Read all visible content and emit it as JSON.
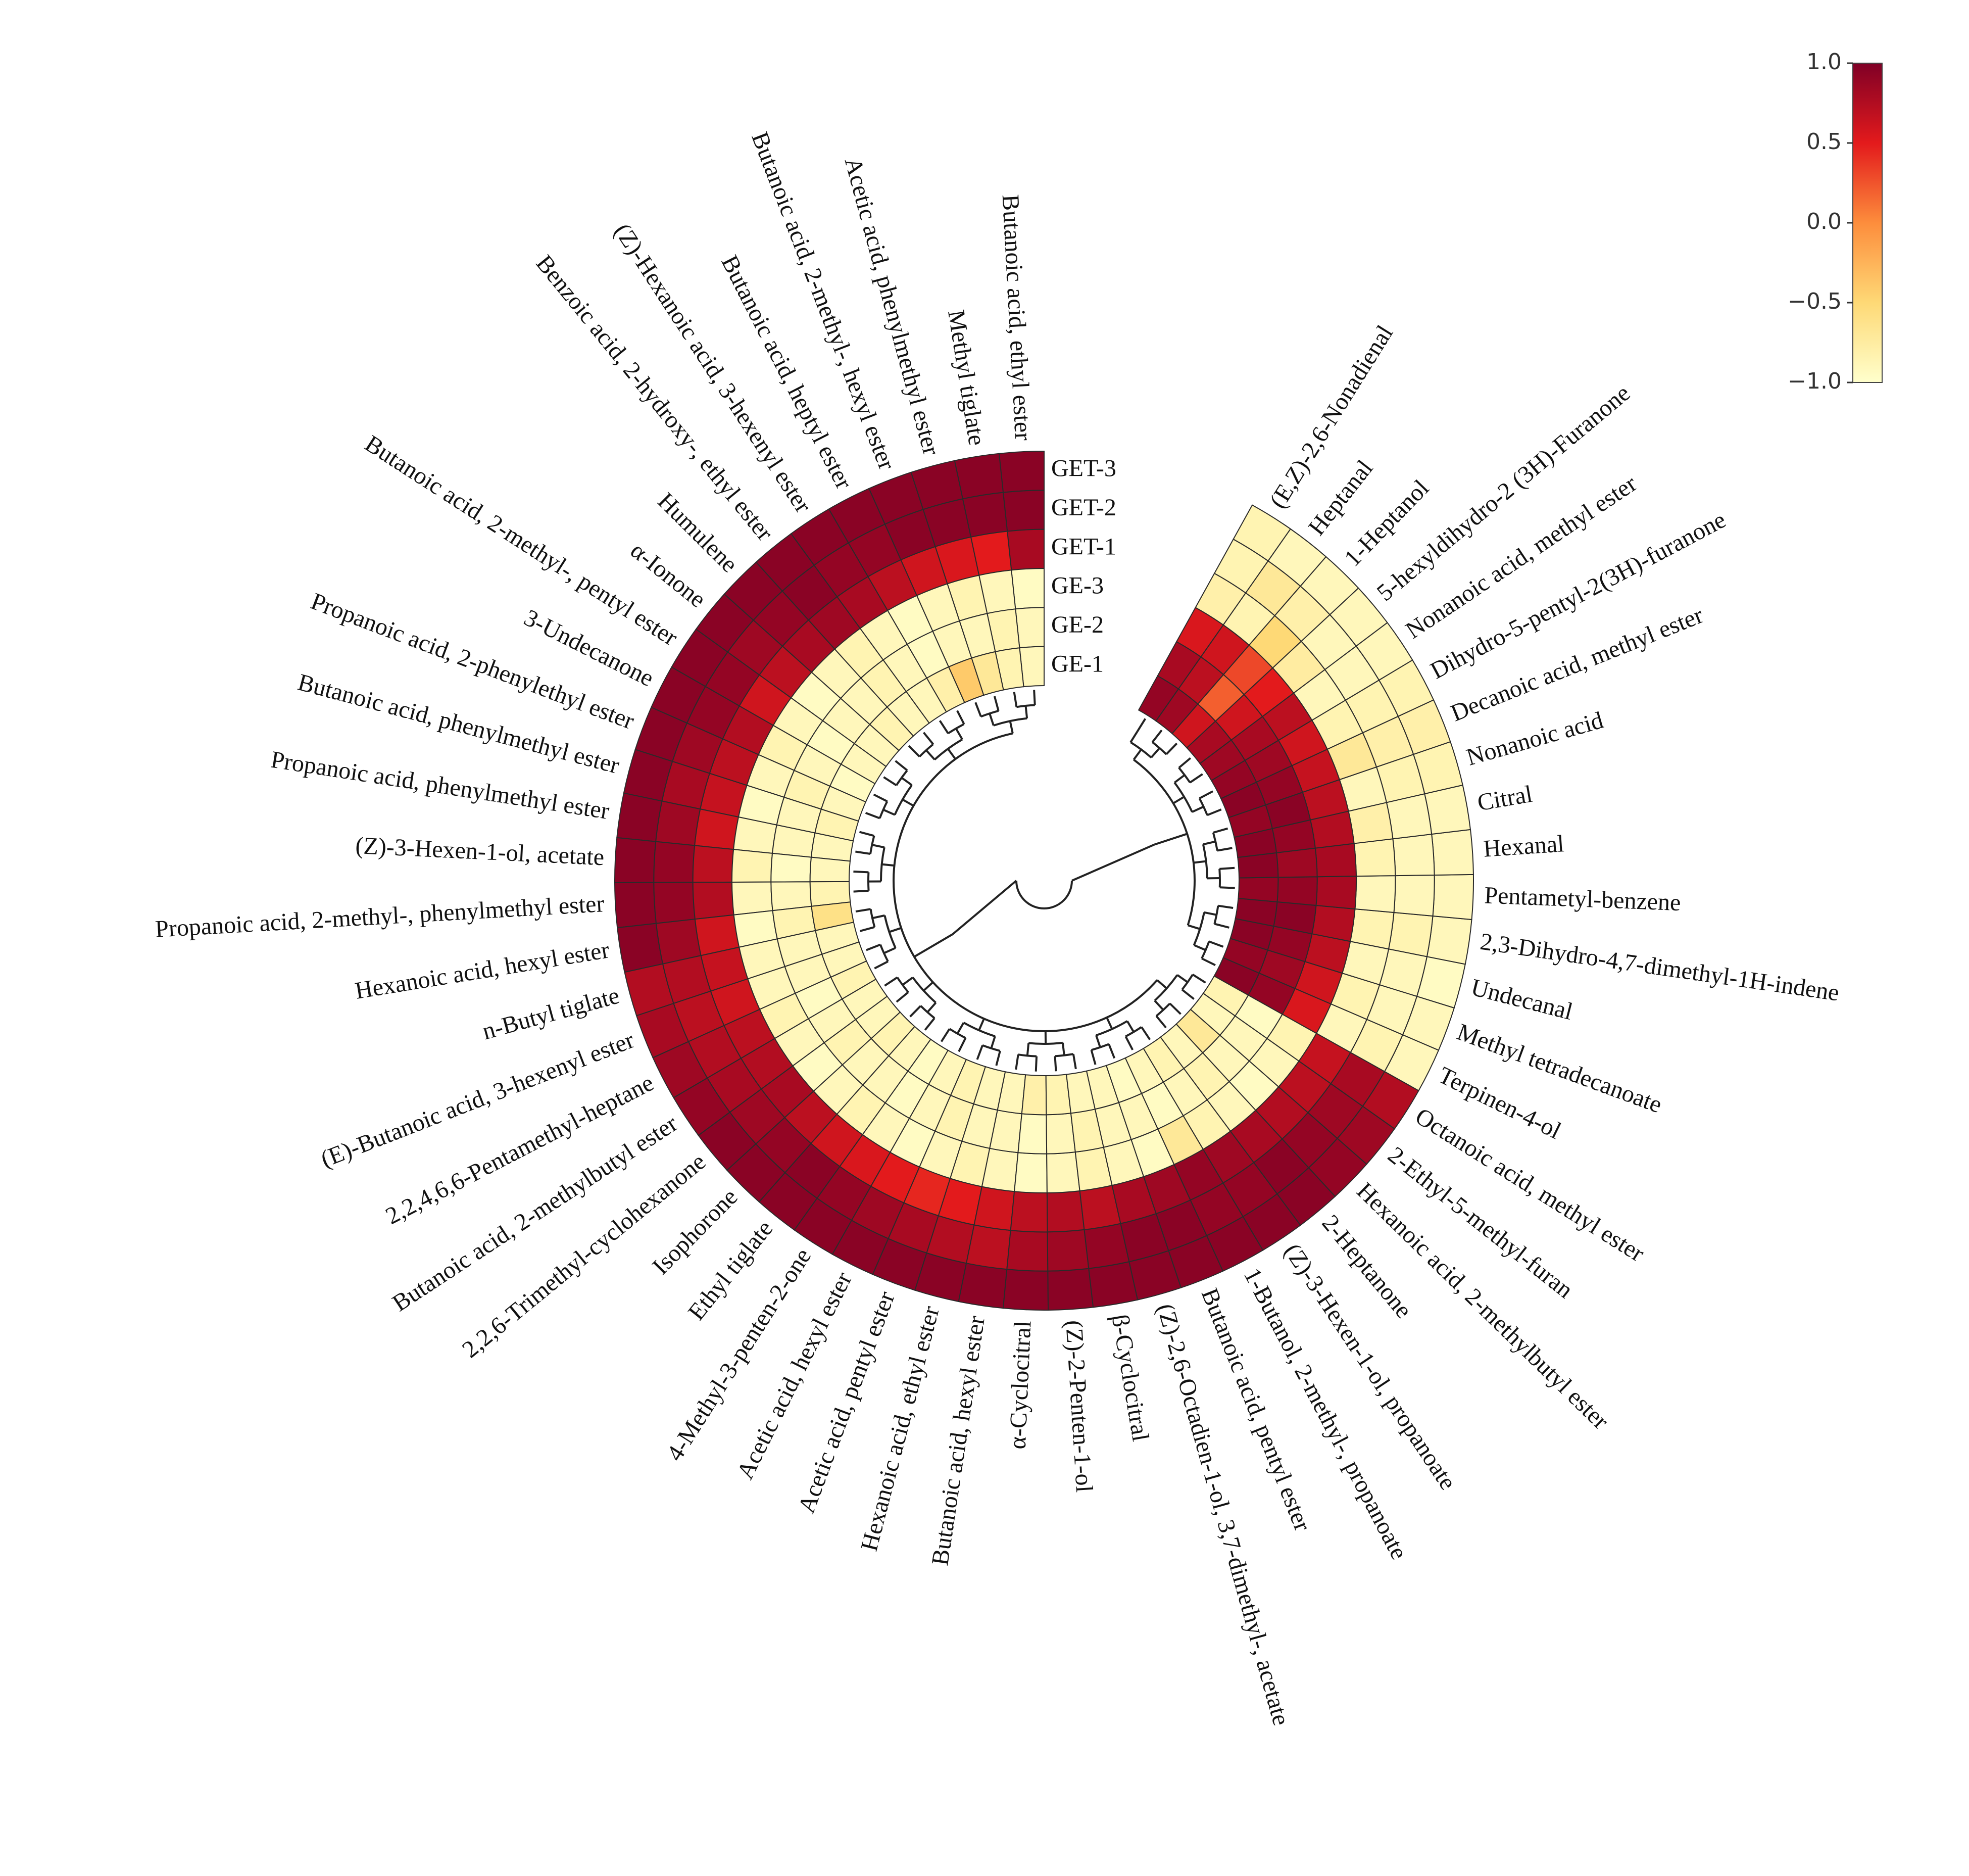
{
  "chart_data": {
    "type": "circular-heatmap",
    "categories": [
      "Butanoic acid, ethyl ester",
      "Methyl tiglate",
      "Acetic acid, phenylmethyl ester",
      "Butanoic acid, 2-methyl-, hexyl ester",
      "Butanoic acid, heptyl ester",
      "(Z)-Hexanoic acid, 3-hexenyl ester",
      "Benzoic acid, 2-hydroxy-, ethyl ester",
      "Humulene",
      "α-Ionone",
      "Butanoic acid, 2-methyl-, pentyl ester",
      "3-Undecanone",
      "Propanoic acid, 2-phenylethyl ester",
      "Butanoic acid, phenylmethyl ester",
      "Propanoic acid, phenylmethyl ester",
      "(Z)-3-Hexen-1-ol, acetate",
      "Propanoic acid, 2-methyl-, phenylmethyl ester",
      "Hexanoic acid, hexyl ester",
      "n-Butyl tiglate",
      "(E)-Butanoic acid, 3-hexenyl ester",
      "2,2,4,6,6-Pentamethyl-heptane",
      "Butanoic acid, 2-methylbutyl ester",
      "2,2,6-Trimethyl-cyclohexanone",
      "Isophorone",
      "Ethyl tiglate",
      "4-Methyl-3-penten-2-one",
      "Acetic acid, hexyl ester",
      "Acetic acid, pentyl ester",
      "Hexanoic acid, ethyl ester",
      "Butanoic acid, hexyl ester",
      "α-Cyclocitral",
      "(Z)-2-Penten-1-ol",
      "β-Cyclocitral",
      "(Z)-2,6-Octadien-1-ol, 3,7-dimethyl-, acetate",
      "Butanoic acid, pentyl ester",
      "1-Butanol, 2-methyl-, propanoate",
      "(Z)-3-Hexen-1-ol, propanoate",
      "2-Heptanone",
      "Hexanoic acid, 2-methylbutyl ester",
      "2-Ethyl-5-methyl-furan",
      "Octanoic acid, methyl ester",
      "Terpinen-4-ol",
      "Methyl tetradecanoate",
      "Undecanal",
      "2,3-Dihydro-4,7-dimethyl-1H-indene",
      "Pentametyl-benzene",
      "Hexanal",
      "Citral",
      "Nonanoic acid",
      "Decanoic acid, methyl ester",
      "Dihydro-5-pentyl-2(3H)-furanone",
      "Nonanoic acid, methyl ester",
      "5-hexyldihydro-2 (3H)-Furanone",
      "1-Heptanol",
      "Heptanal",
      "(E,Z)-2,6-Nonadienal"
    ],
    "series": [
      {
        "name": "GET-3",
        "values": [
          0.95,
          0.95,
          0.95,
          0.95,
          0.95,
          0.95,
          0.95,
          0.95,
          0.95,
          0.95,
          0.95,
          0.95,
          0.95,
          0.95,
          0.95,
          0.95,
          0.95,
          0.75,
          0.8,
          0.85,
          0.9,
          0.95,
          0.95,
          0.95,
          0.95,
          0.95,
          0.95,
          0.95,
          0.95,
          0.95,
          0.95,
          0.95,
          0.95,
          0.95,
          0.95,
          0.95,
          0.95,
          0.9,
          0.85,
          0.75,
          -0.9,
          -0.9,
          -0.95,
          -0.9,
          -0.9,
          -0.9,
          -0.9,
          -0.85,
          -0.8,
          -0.85,
          -0.9,
          -0.9,
          -0.9,
          -0.9,
          -0.85
        ]
      },
      {
        "name": "GET-2",
        "values": [
          0.95,
          0.95,
          0.95,
          0.95,
          0.9,
          0.9,
          0.95,
          0.9,
          0.85,
          0.9,
          0.9,
          0.85,
          0.8,
          0.85,
          0.9,
          0.9,
          0.85,
          0.75,
          0.7,
          0.75,
          0.8,
          0.85,
          0.9,
          0.95,
          0.9,
          0.85,
          0.8,
          0.75,
          0.7,
          0.8,
          0.85,
          0.9,
          0.95,
          0.95,
          0.9,
          0.9,
          0.95,
          0.9,
          0.85,
          0.8,
          -0.85,
          -0.9,
          -0.9,
          -0.85,
          -0.9,
          -0.9,
          -0.9,
          -0.85,
          -0.8,
          -0.85,
          -0.9,
          -0.9,
          -0.8,
          -0.7,
          -0.85
        ]
      },
      {
        "name": "GET-1",
        "values": [
          0.8,
          0.5,
          0.55,
          0.6,
          0.7,
          0.8,
          0.85,
          0.8,
          0.7,
          0.6,
          0.75,
          0.7,
          0.65,
          0.6,
          0.7,
          0.75,
          0.6,
          0.65,
          0.6,
          0.7,
          0.75,
          0.8,
          0.7,
          0.6,
          0.55,
          0.5,
          0.45,
          0.5,
          0.6,
          0.7,
          0.75,
          0.7,
          0.8,
          0.85,
          0.9,
          0.85,
          0.8,
          0.75,
          0.7,
          0.65,
          -0.9,
          -0.85,
          -0.9,
          -0.85,
          -0.9,
          -0.85,
          -0.8,
          -0.9,
          -0.7,
          -0.85,
          -0.9,
          -0.75,
          -0.5,
          -0.85,
          -0.8
        ]
      },
      {
        "name": "GE-3",
        "values": [
          -0.95,
          -0.9,
          -0.85,
          -0.9,
          -0.95,
          -0.9,
          -0.85,
          -0.9,
          -0.95,
          -0.9,
          -0.85,
          -0.9,
          -0.95,
          -0.9,
          -0.85,
          -0.9,
          -0.95,
          -0.9,
          -0.9,
          -0.85,
          -0.9,
          -0.95,
          -0.9,
          -0.85,
          -0.9,
          -0.95,
          -0.9,
          -0.85,
          -0.9,
          -0.95,
          -0.9,
          -0.85,
          -0.9,
          -0.95,
          -0.7,
          -0.85,
          -0.9,
          -0.95,
          -0.9,
          -0.85,
          0.55,
          0.6,
          0.7,
          0.75,
          0.8,
          0.8,
          0.75,
          0.7,
          0.65,
          0.6,
          0.7,
          0.5,
          0.3,
          0.6,
          0.55
        ]
      },
      {
        "name": "GE-2",
        "values": [
          -0.9,
          -0.85,
          -0.9,
          -0.9,
          -0.95,
          -0.9,
          -0.85,
          -0.9,
          -0.9,
          -0.95,
          -0.9,
          -0.85,
          -0.9,
          -0.9,
          -0.95,
          -0.9,
          -0.85,
          -0.9,
          -0.9,
          -0.95,
          -0.9,
          -0.85,
          -0.9,
          -0.9,
          -0.95,
          -0.9,
          -0.85,
          -0.9,
          -0.9,
          -0.95,
          -0.9,
          -0.85,
          -0.9,
          -0.9,
          -0.95,
          -0.9,
          -0.85,
          -0.9,
          -0.9,
          -0.95,
          0.9,
          0.85,
          0.9,
          0.95,
          0.9,
          0.85,
          0.9,
          0.95,
          0.9,
          0.85,
          0.8,
          0.6,
          0.2,
          0.7,
          0.8
        ]
      },
      {
        "name": "GE-1",
        "values": [
          -0.9,
          -0.85,
          -0.7,
          -0.4,
          -0.8,
          -0.9,
          -0.9,
          -0.85,
          -0.9,
          -0.9,
          -0.95,
          -0.9,
          -0.85,
          -0.9,
          -0.9,
          -0.85,
          -0.6,
          -0.9,
          -0.9,
          -0.85,
          -0.9,
          -0.9,
          -0.85,
          -0.9,
          -0.95,
          -0.9,
          -0.85,
          -0.9,
          -0.9,
          -0.8,
          -0.85,
          -0.9,
          -0.9,
          -0.95,
          -0.9,
          -0.85,
          -0.9,
          -0.7,
          -0.9,
          -0.85,
          0.95,
          0.9,
          0.95,
          0.95,
          0.9,
          0.95,
          0.95,
          0.9,
          0.95,
          0.9,
          0.85,
          0.8,
          0.6,
          0.85,
          0.9
        ]
      }
    ],
    "colormap": [
      "#ffffcc",
      "#fed976",
      "#fd8d3c",
      "#e31a1c",
      "#800026"
    ],
    "zlim": [
      -1,
      1
    ],
    "zticks": [
      {
        "value": 1,
        "label": "1.0"
      },
      {
        "value": 0.5,
        "label": "0.5"
      },
      {
        "value": 0,
        "label": "0.0"
      },
      {
        "value": -0.5,
        "label": "−0.5"
      },
      {
        "value": -1,
        "label": "−1.0"
      }
    ]
  }
}
